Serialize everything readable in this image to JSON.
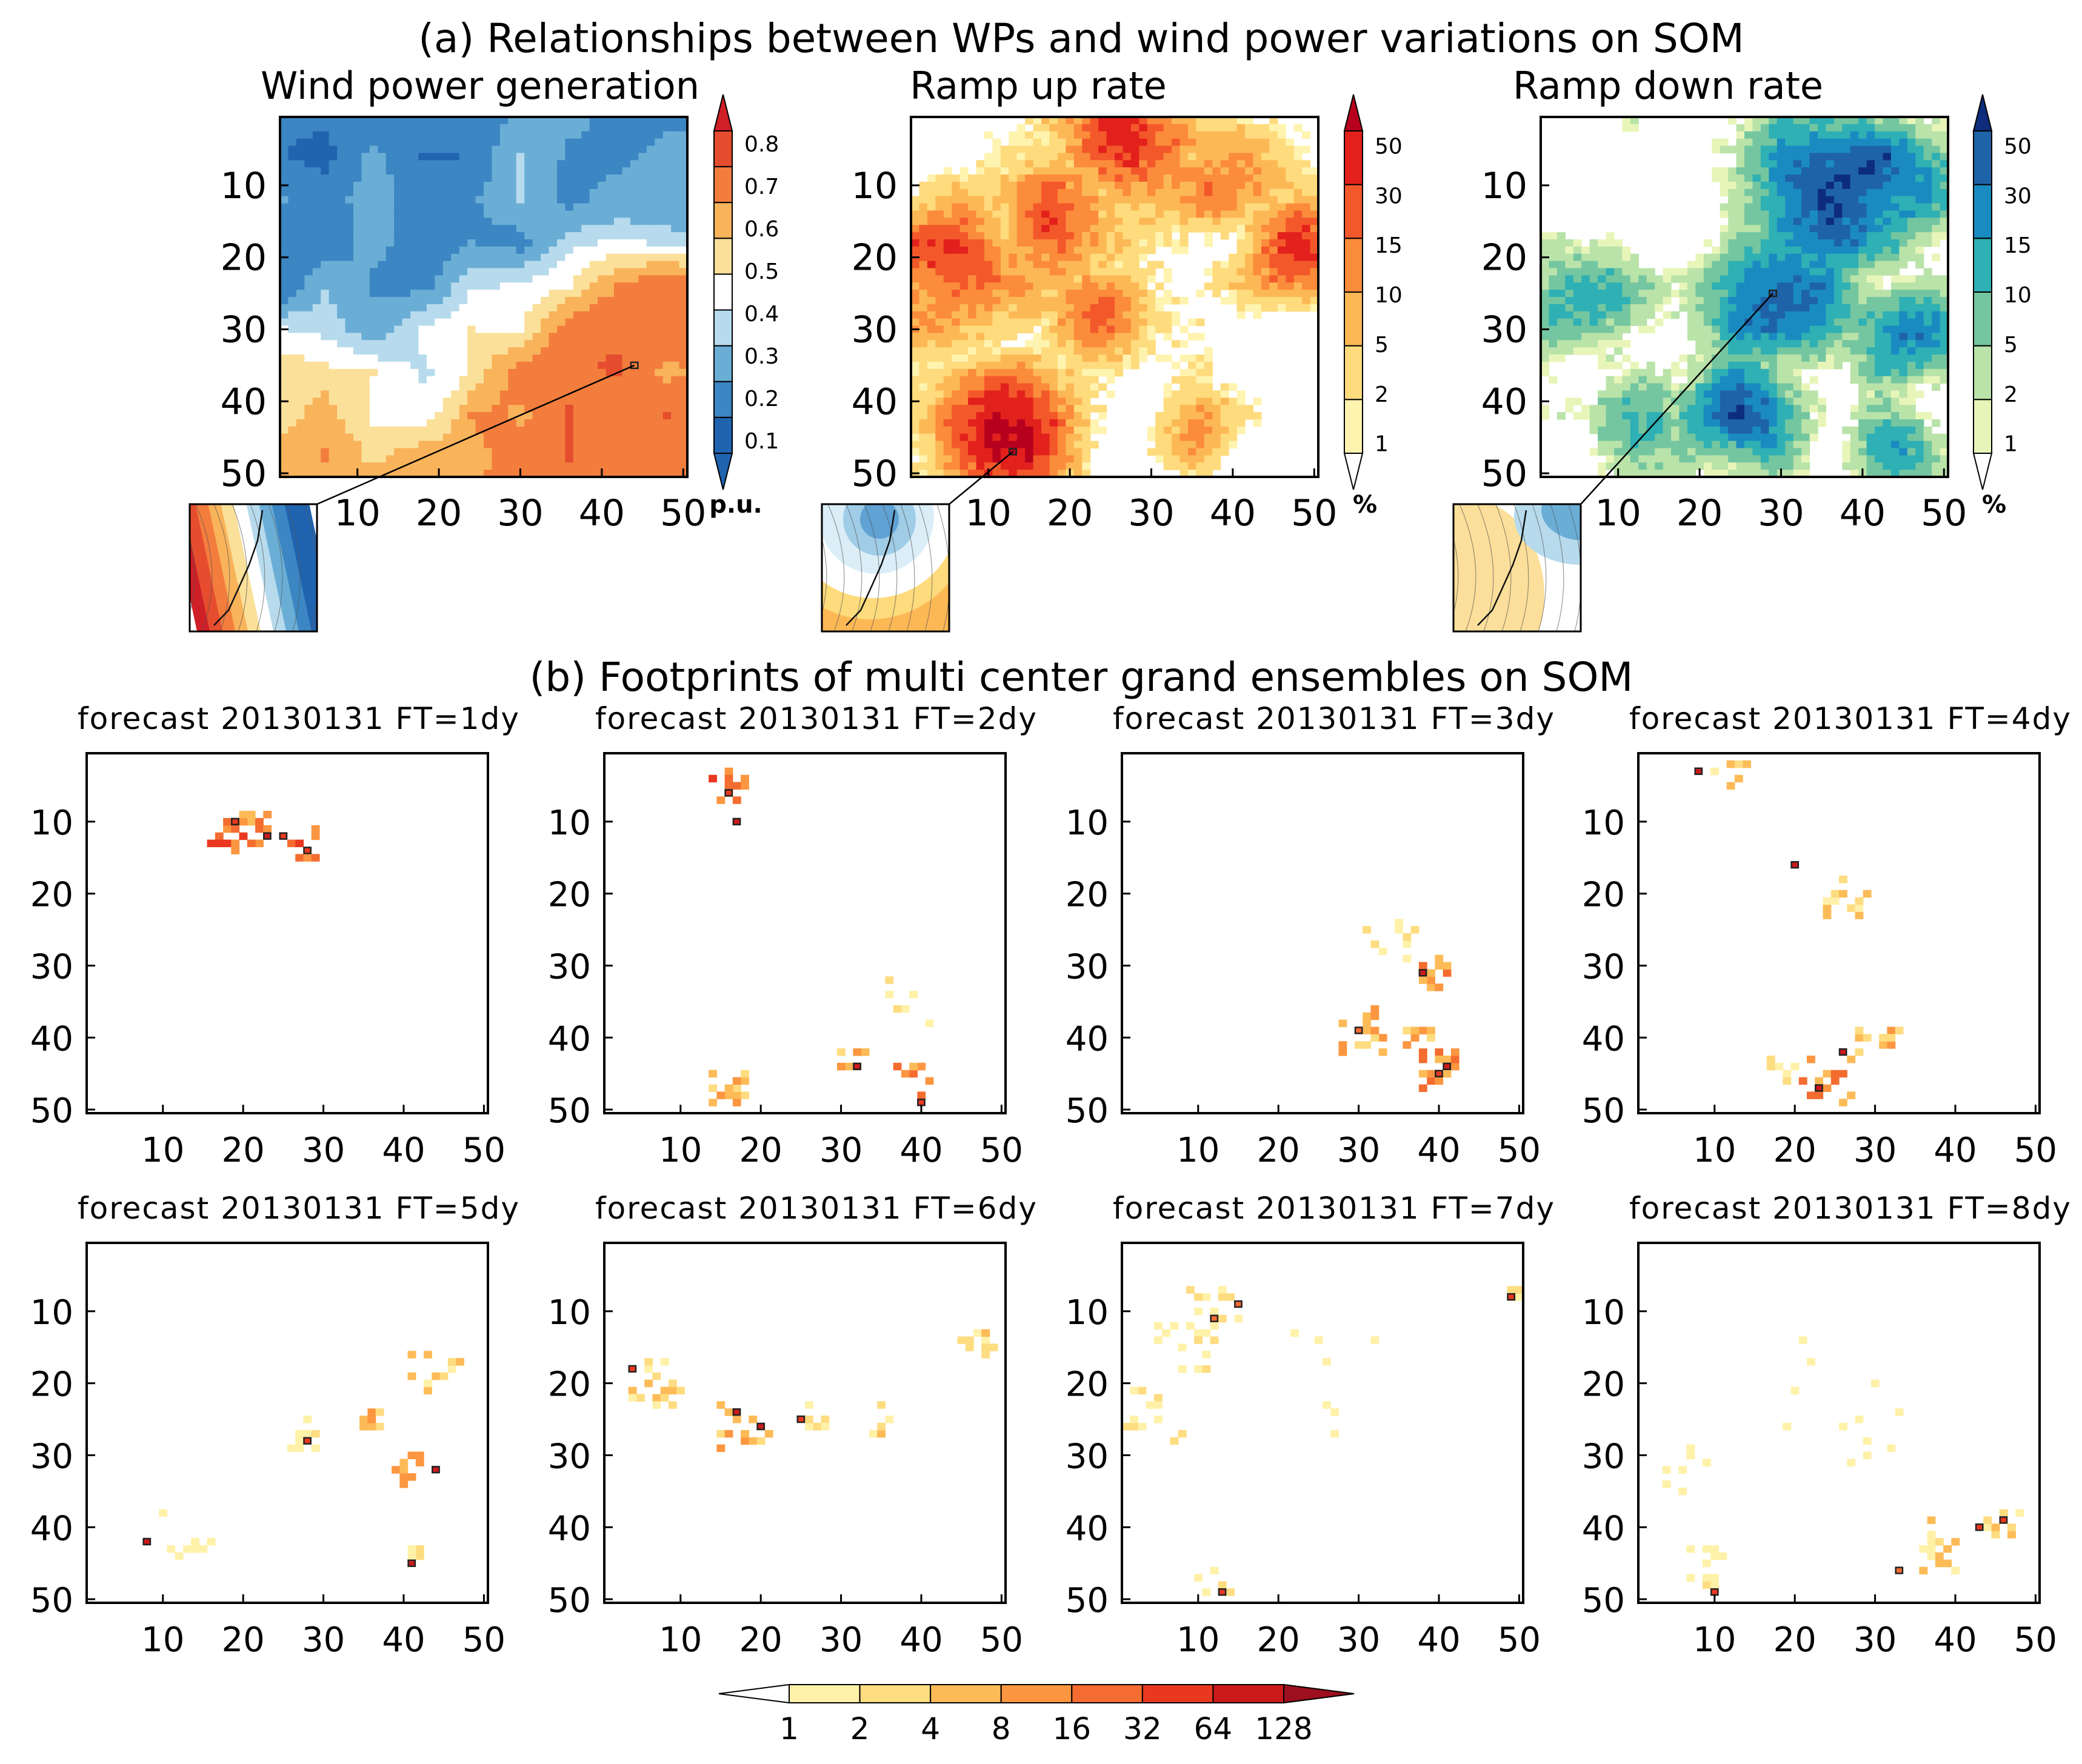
{
  "section_a_title": "(a) Relationships between WPs and wind power variations on SOM",
  "section_b_title": "(b) Footprints of multi center grand ensembles on SOM",
  "chart_data": {
    "type": "heatmap",
    "grid_size": [
      50,
      50
    ],
    "axis_ticks": [
      "10",
      "20",
      "30",
      "40",
      "50"
    ],
    "axis_tick_values": [
      10,
      20,
      30,
      40,
      50
    ],
    "top_panels": [
      {
        "id": "wind-power-generation",
        "title": "Wind power generation",
        "colorbar_labels": [
          "0.8",
          "0.7",
          "0.6",
          "0.5",
          "0.4",
          "0.3",
          "0.2",
          "0.1"
        ],
        "unit": "p.u.",
        "palette": "diverging_red_blue",
        "range": [
          0,
          1
        ],
        "marker": [
          44,
          35
        ],
        "fill_style": "diverging",
        "field_centers": [
          {
            "x": 40,
            "y": 38,
            "v": 0.82,
            "r": 11
          },
          {
            "x": 8,
            "y": 44,
            "v": 0.68,
            "r": 6
          },
          {
            "x": 22,
            "y": 15,
            "v": 0.12,
            "r": 10
          },
          {
            "x": 8,
            "y": 12,
            "v": 0.1,
            "r": 7
          },
          {
            "x": 48,
            "y": 8,
            "v": 0.15,
            "r": 6
          },
          {
            "x": 31,
            "y": 4,
            "v": 0.22,
            "r": 6
          },
          {
            "x": 14,
            "y": 34,
            "v": 0.28,
            "r": 6
          }
        ]
      },
      {
        "id": "ramp-up-rate",
        "title": "Ramp up rate",
        "colorbar_labels": [
          "50",
          "30",
          "15",
          "10",
          "5",
          "2",
          "1"
        ],
        "unit": "%",
        "palette": "warm",
        "range": [
          0,
          7
        ],
        "marker": [
          13,
          47
        ],
        "fill_style": "patchy",
        "field_centers": [
          {
            "x": 12,
            "y": 44,
            "v": 7,
            "r": 7
          },
          {
            "x": 6,
            "y": 22,
            "v": 5.5,
            "r": 8
          },
          {
            "x": 17,
            "y": 14,
            "v": 5,
            "r": 7
          },
          {
            "x": 28,
            "y": 3,
            "v": 6,
            "r": 7
          },
          {
            "x": 48,
            "y": 18,
            "v": 5.5,
            "r": 6
          },
          {
            "x": 40,
            "y": 8,
            "v": 4.5,
            "r": 7
          },
          {
            "x": 24,
            "y": 28,
            "v": 4,
            "r": 5
          },
          {
            "x": 35,
            "y": 44,
            "v": 3,
            "r": 4
          }
        ]
      },
      {
        "id": "ramp-down-rate",
        "title": "Ramp down rate",
        "colorbar_labels": [
          "50",
          "30",
          "15",
          "10",
          "5",
          "2",
          "1"
        ],
        "unit": "%",
        "palette": "cool",
        "range": [
          0,
          7
        ],
        "marker": [
          29,
          25
        ],
        "fill_style": "patchy",
        "field_centers": [
          {
            "x": 38,
            "y": 10,
            "v": 6.5,
            "r": 9
          },
          {
            "x": 30,
            "y": 26,
            "v": 5.5,
            "r": 7
          },
          {
            "x": 26,
            "y": 42,
            "v": 6,
            "r": 6
          },
          {
            "x": 6,
            "y": 26,
            "v": 5,
            "r": 6
          },
          {
            "x": 46,
            "y": 30,
            "v": 4.5,
            "r": 6
          },
          {
            "x": 12,
            "y": 42,
            "v": 3.5,
            "r": 5
          },
          {
            "x": 44,
            "y": 46,
            "v": 4,
            "r": 5
          }
        ]
      }
    ],
    "forecast_panels": [
      {
        "title": "forecast  20130131  FT=1dy",
        "markers": [
          [
            19,
            10
          ],
          [
            23,
            12
          ],
          [
            25,
            12
          ],
          [
            28,
            14
          ]
        ],
        "cells": [
          {
            "c": [
              18,
              12
            ],
            "n": 13,
            "s": 2,
            "v": 6
          },
          {
            "c": [
              22,
              11
            ],
            "n": 10,
            "s": 2,
            "v": 5
          },
          {
            "c": [
              27,
              13
            ],
            "n": 12,
            "s": 2,
            "v": 6
          }
        ]
      },
      {
        "title": "forecast  20130131  FT=2dy",
        "markers": [
          [
            16,
            6
          ],
          [
            17,
            10
          ],
          [
            32,
            44
          ],
          [
            40,
            49
          ]
        ],
        "cells": [
          {
            "c": [
              16,
              5
            ],
            "n": 14,
            "s": 2,
            "v": 6
          },
          {
            "c": [
              16,
              47
            ],
            "n": 14,
            "s": 2,
            "v": 4
          },
          {
            "c": [
              32,
              44
            ],
            "n": 8,
            "s": 2,
            "v": 4
          },
          {
            "c": [
              39,
              46
            ],
            "n": 10,
            "s": 2,
            "v": 5
          },
          {
            "c": [
              37,
              34
            ],
            "n": 6,
            "s": 4,
            "v": 2
          }
        ]
      },
      {
        "title": "forecast  20130131  FT=3dy",
        "markers": [
          [
            30,
            39
          ],
          [
            38,
            31
          ],
          [
            40,
            45
          ],
          [
            41,
            44
          ]
        ],
        "cells": [
          {
            "c": [
              31,
              39
            ],
            "n": 14,
            "s": 3,
            "v": 4
          },
          {
            "c": [
              39,
              31
            ],
            "n": 12,
            "s": 2,
            "v": 5
          },
          {
            "c": [
              40,
              44
            ],
            "n": 16,
            "s": 3,
            "v": 5
          },
          {
            "c": [
              34,
              27
            ],
            "n": 10,
            "s": 3,
            "v": 2
          },
          {
            "c": [
              37,
              40
            ],
            "n": 8,
            "s": 2,
            "v": 4
          }
        ]
      },
      {
        "title": "forecast  20130131  FT=4dy",
        "markers": [
          [
            8,
            3
          ],
          [
            20,
            16
          ],
          [
            26,
            42
          ],
          [
            23,
            47
          ]
        ],
        "cells": [
          {
            "c": [
              12,
              3
            ],
            "n": 10,
            "s": 2,
            "v": 3
          },
          {
            "c": [
              26,
              21
            ],
            "n": 14,
            "s": 3,
            "v": 3
          },
          {
            "c": [
              24,
              46
            ],
            "n": 16,
            "s": 3,
            "v": 5
          },
          {
            "c": [
              30,
              40
            ],
            "n": 14,
            "s": 3,
            "v": 4
          },
          {
            "c": [
              18,
              45
            ],
            "n": 8,
            "s": 2,
            "v": 2
          }
        ]
      },
      {
        "title": "forecast  20130131  FT=5dy",
        "markers": [
          [
            28,
            28
          ],
          [
            44,
            32
          ],
          [
            41,
            45
          ],
          [
            8,
            42
          ]
        ],
        "cells": [
          {
            "c": [
              28,
              27
            ],
            "n": 10,
            "s": 2,
            "v": 2
          },
          {
            "c": [
              36,
              26
            ],
            "n": 10,
            "s": 2,
            "v": 4
          },
          {
            "c": [
              40,
              32
            ],
            "n": 12,
            "s": 2,
            "v": 4
          },
          {
            "c": [
              44,
              18
            ],
            "n": 12,
            "s": 3,
            "v": 3
          },
          {
            "c": [
              13,
              41
            ],
            "n": 9,
            "s": 3,
            "v": 1
          },
          {
            "c": [
              41,
              44
            ],
            "n": 5,
            "s": 1,
            "v": 2
          }
        ]
      },
      {
        "title": "forecast  20130131  FT=6dy",
        "markers": [
          [
            4,
            18
          ],
          [
            17,
            24
          ],
          [
            20,
            26
          ],
          [
            25,
            25
          ]
        ],
        "cells": [
          {
            "c": [
              7,
              20
            ],
            "n": 18,
            "s": 3,
            "v": 3
          },
          {
            "c": [
              18,
              26
            ],
            "n": 16,
            "s": 3,
            "v": 4
          },
          {
            "c": [
              26,
              25
            ],
            "n": 8,
            "s": 2,
            "v": 2
          },
          {
            "c": [
              47,
              15
            ],
            "n": 10,
            "s": 2,
            "v": 3
          },
          {
            "c": [
              36,
              25
            ],
            "n": 6,
            "s": 2,
            "v": 3
          }
        ]
      },
      {
        "title": "forecast  20130131  FT=7dy",
        "markers": [
          [
            12,
            11
          ],
          [
            15,
            9
          ],
          [
            49,
            8
          ],
          [
            13,
            49
          ]
        ],
        "cells": [
          {
            "c": [
              8,
              14
            ],
            "n": 18,
            "s": 4,
            "v": 2
          },
          {
            "c": [
              4,
              24
            ],
            "n": 14,
            "s": 4,
            "v": 2
          },
          {
            "c": [
              12,
              9
            ],
            "n": 10,
            "s": 3,
            "v": 2
          },
          {
            "c": [
              49,
              8
            ],
            "n": 6,
            "s": 1,
            "v": 3
          },
          {
            "c": [
              12,
              48
            ],
            "n": 8,
            "s": 2,
            "v": 2
          },
          {
            "c": [
              28,
              20
            ],
            "n": 8,
            "s": 8,
            "v": 1
          }
        ]
      },
      {
        "title": "forecast  20130131  FT=8dy",
        "markers": [
          [
            10,
            49
          ],
          [
            33,
            46
          ],
          [
            43,
            40
          ],
          [
            46,
            39
          ]
        ],
        "cells": [
          {
            "c": [
              9,
              46
            ],
            "n": 14,
            "s": 3,
            "v": 2
          },
          {
            "c": [
              38,
              43
            ],
            "n": 18,
            "s": 4,
            "v": 3
          },
          {
            "c": [
              46,
              40
            ],
            "n": 10,
            "s": 2,
            "v": 3
          },
          {
            "c": [
              6,
              32
            ],
            "n": 8,
            "s": 3,
            "v": 1
          },
          {
            "c": [
              25,
              22
            ],
            "n": 12,
            "s": 10,
            "v": 1
          }
        ]
      }
    ],
    "bottom_colorbar_labels": [
      "1",
      "2",
      "4",
      "8",
      "16",
      "32",
      "64",
      "128"
    ]
  },
  "colors": {
    "blue_red": [
      "#2064b0",
      "#3b86c3",
      "#6aaed6",
      "#b7dbed",
      "#ffffff",
      "#fbe09a",
      "#f9b35a",
      "#f37d3d",
      "#e54d2e",
      "#cf1f27"
    ],
    "warm": [
      "#ffffff",
      "#fff3b0",
      "#fedb7c",
      "#fdb856",
      "#fb8c3b",
      "#f3582a",
      "#e3211c",
      "#b7001e"
    ],
    "cool": [
      "#ffffff",
      "#e8f5b9",
      "#b9e3a9",
      "#74c6a0",
      "#2eb0b4",
      "#1a8bc1",
      "#1e63a8",
      "#0d2d7c"
    ],
    "footprint": [
      "#ffffff",
      "#fff1a8",
      "#fedc80",
      "#fdbb57",
      "#fc9640",
      "#f46c30",
      "#e9381f",
      "#cc1a1c",
      "#9d0f1e"
    ]
  }
}
